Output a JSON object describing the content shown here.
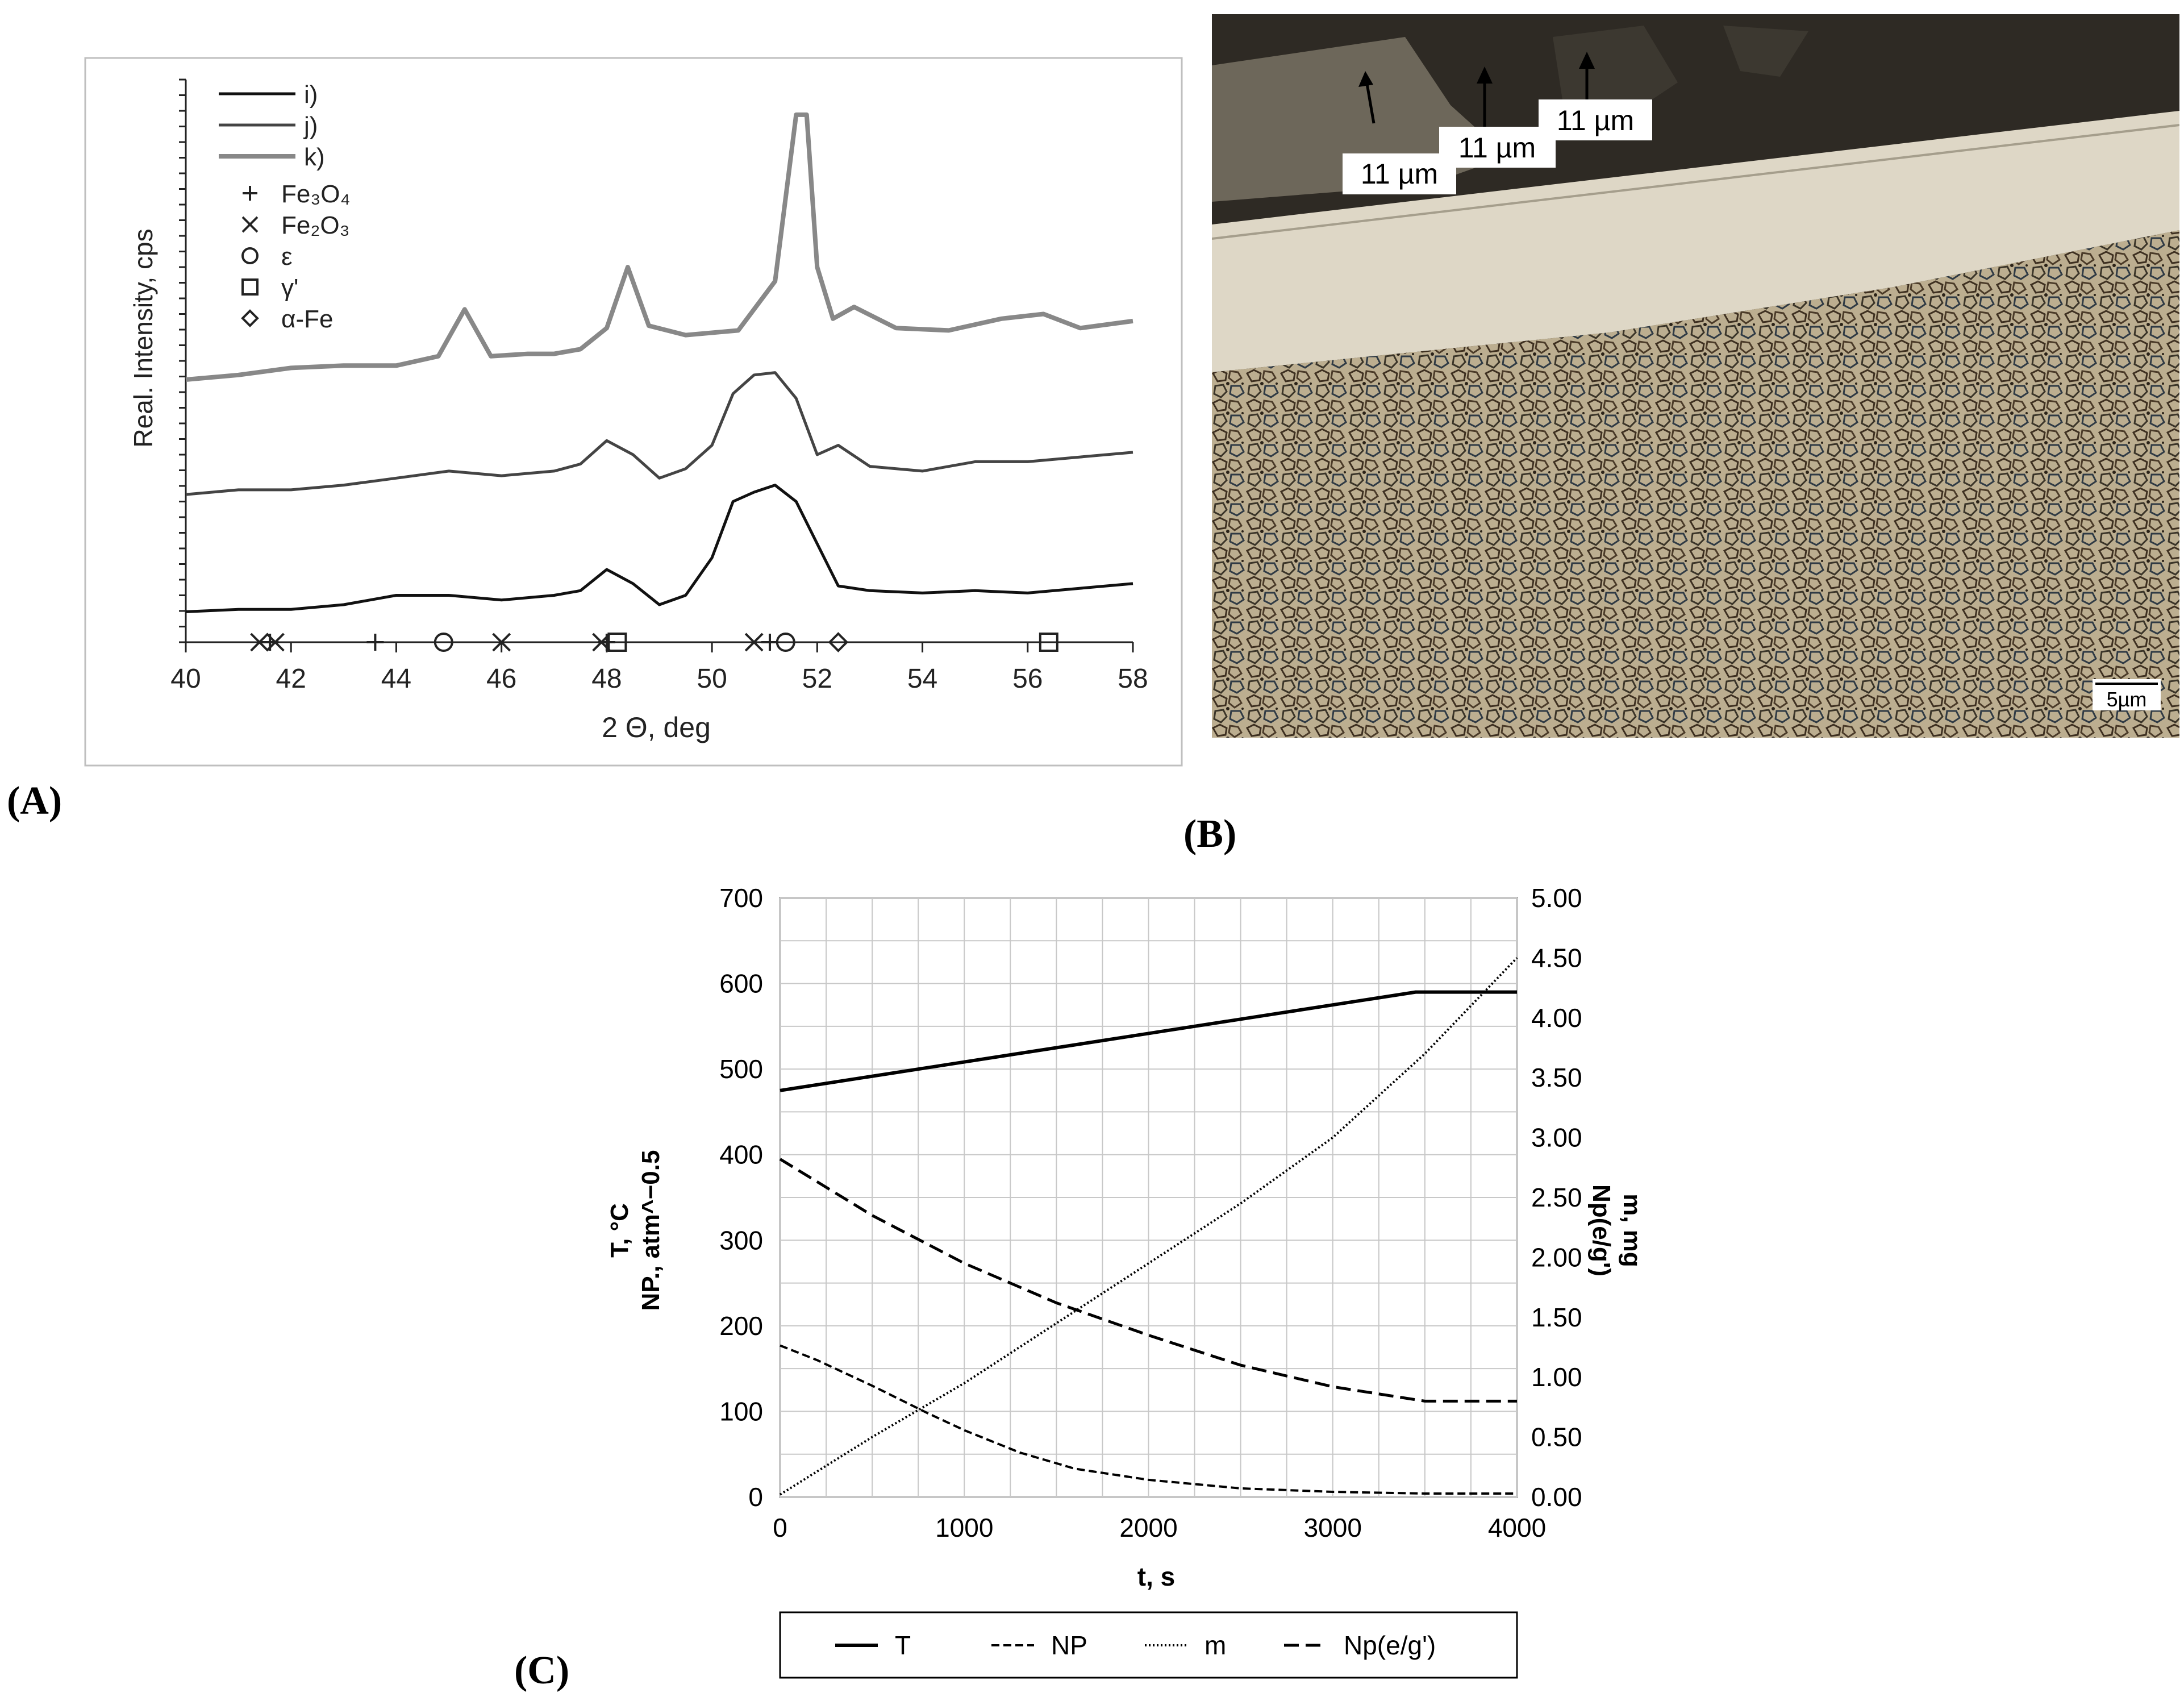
{
  "panel_labels": {
    "a": "(A)",
    "b": "(B)",
    "c": "(C)"
  },
  "micrograph": {
    "annotations": [
      "11 µm",
      "11 µm",
      "11 µm"
    ],
    "scale_bar": "5µm",
    "colors": {
      "resin": "#2a2620",
      "layer": "#d9d2c0",
      "substrate": "#b8ab8e",
      "grain": "#4a3a28"
    }
  },
  "chart_data": [
    {
      "type": "line",
      "xlabel": "2 Θ, deg",
      "ylabel": "Real. Intensity, cps",
      "xlim": [
        40,
        58
      ],
      "xticks": [
        40,
        42,
        44,
        46,
        48,
        50,
        52,
        54,
        56,
        58
      ],
      "grid": false,
      "legend_position": "top-left",
      "series": [
        {
          "name": "i)",
          "color": "#111111",
          "width": 5,
          "x": [
            40,
            41,
            42,
            43,
            44,
            45,
            46,
            47,
            47.5,
            48,
            48.5,
            49,
            49.5,
            50,
            50.4,
            50.8,
            51.2,
            51.6,
            52,
            52.4,
            53,
            54,
            55,
            56,
            57,
            58
          ],
          "y": [
            13,
            14,
            14,
            16,
            20,
            20,
            18,
            20,
            22,
            31,
            25,
            16,
            20,
            36,
            60,
            64,
            67,
            60,
            42,
            24,
            22,
            21,
            22,
            21,
            23,
            25
          ]
        },
        {
          "name": "j)",
          "color": "#444444",
          "width": 5,
          "x": [
            40,
            41,
            42,
            43,
            44,
            45,
            46,
            47,
            47.5,
            48,
            48.5,
            49,
            49.5,
            50,
            50.4,
            50.8,
            51.2,
            51.6,
            52,
            52.4,
            53,
            54,
            55,
            56,
            57,
            58
          ],
          "y": [
            63,
            65,
            65,
            67,
            70,
            73,
            71,
            73,
            76,
            86,
            80,
            70,
            74,
            84,
            106,
            114,
            115,
            104,
            80,
            84,
            75,
            73,
            77,
            77,
            79,
            81
          ]
        },
        {
          "name": "k)",
          "color": "#888888",
          "width": 8,
          "x": [
            40,
            41,
            42,
            43,
            44,
            44.8,
            45.3,
            45.8,
            46.5,
            47,
            47.5,
            48,
            48.4,
            48.8,
            49.5,
            50.5,
            51.2,
            51.6,
            51.8,
            52,
            52.3,
            52.7,
            53.5,
            54.5,
            55.5,
            56.3,
            57,
            58
          ],
          "y": [
            112,
            114,
            117,
            118,
            118,
            122,
            142,
            122,
            123,
            123,
            125,
            134,
            160,
            135,
            131,
            133,
            154,
            225,
            225,
            160,
            138,
            143,
            134,
            133,
            138,
            140,
            134,
            137
          ]
        }
      ],
      "markers": [
        {
          "name": "Fe₃O₄",
          "symbol": "plus",
          "x": [
            41.6,
            43.6,
            48.0,
            51.1
          ]
        },
        {
          "name": "Fe₂O₃",
          "symbol": "cross",
          "x": [
            41.4,
            41.7,
            46.0,
            47.9,
            50.8
          ]
        },
        {
          "name": "ε",
          "symbol": "circle",
          "x": [
            44.9,
            51.4
          ]
        },
        {
          "name": "γ'",
          "symbol": "square",
          "x": [
            48.2,
            56.4
          ]
        },
        {
          "name": "α-Fe",
          "symbol": "diamond",
          "x": [
            52.4
          ]
        }
      ]
    },
    {
      "type": "line",
      "xlabel": "t, s",
      "ylabel_left": [
        "T, °C",
        "NP., atm^−0.5"
      ],
      "ylabel_right": [
        "m, mg",
        "Np(e/g')"
      ],
      "xlim": [
        0,
        4000
      ],
      "ylim_left": [
        0,
        700
      ],
      "ylim_right": [
        0,
        5
      ],
      "xticks": [
        0,
        1000,
        2000,
        3000,
        4000
      ],
      "yticks_left": [
        0,
        100,
        200,
        300,
        400,
        500,
        600,
        700
      ],
      "yticks_right": [
        "0.00",
        "0.50",
        "1.00",
        "1.50",
        "2.00",
        "2.50",
        "3.00",
        "3.50",
        "4.00",
        "4.50",
        "5.00"
      ],
      "grid": true,
      "legend_position": "bottom",
      "series": [
        {
          "name": "T",
          "axis": "left",
          "dash": "",
          "width": 6,
          "x": [
            0,
            3450,
            4000
          ],
          "y": [
            475,
            590,
            590
          ]
        },
        {
          "name": "NP",
          "axis": "left",
          "dash": "14 7",
          "width": 4,
          "x": [
            0,
            200,
            500,
            800,
            1000,
            1300,
            1600,
            2000,
            2500,
            3000,
            3500,
            4000
          ],
          "y": [
            177,
            160,
            130,
            98,
            78,
            52,
            33,
            20,
            10,
            6,
            4,
            4
          ]
        },
        {
          "name": "m",
          "axis": "right",
          "dash": "3 4",
          "width": 4,
          "x": [
            0,
            500,
            1000,
            1500,
            2000,
            2500,
            3000,
            3500,
            4000
          ],
          "y": [
            0.02,
            0.5,
            0.95,
            1.45,
            1.95,
            2.45,
            3.0,
            3.7,
            4.5
          ]
        },
        {
          "name": "Np(e/g')",
          "axis": "right",
          "dash": "26 12",
          "width": 5,
          "x": [
            0,
            500,
            1000,
            1500,
            2000,
            2500,
            3000,
            3500,
            4000
          ],
          "y": [
            2.82,
            2.35,
            1.95,
            1.62,
            1.35,
            1.1,
            0.92,
            0.8,
            0.8
          ]
        }
      ]
    }
  ]
}
